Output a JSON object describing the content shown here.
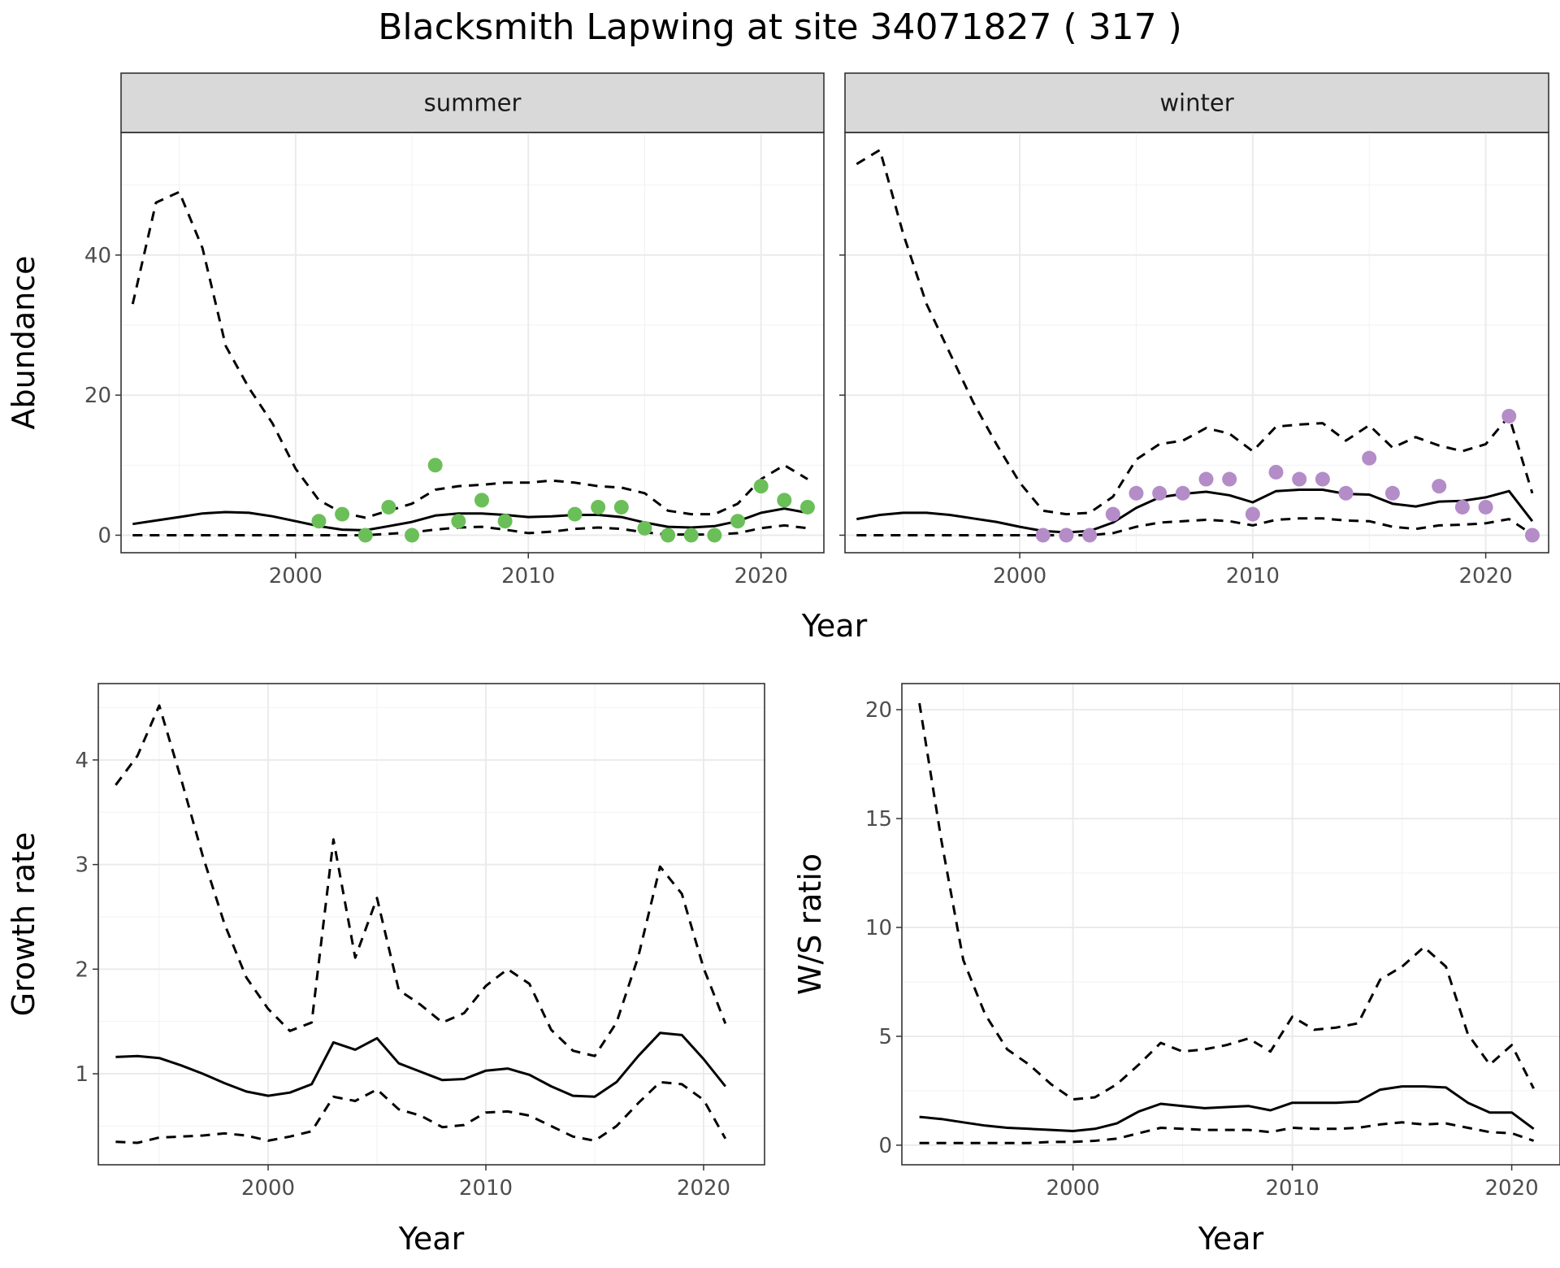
{
  "title": "Blacksmith Lapwing at site 34071827 ( 317 )",
  "chart_data": [
    {
      "panel": "summer",
      "type": "line",
      "strip_label": "summer",
      "xlabel": "",
      "ylabel": "Abundance",
      "xlim": [
        1992.5,
        2022.7
      ],
      "ylim": [
        -2.5,
        57.5
      ],
      "xticks": [
        2000,
        2010,
        2020
      ],
      "yticks": [
        0,
        20,
        40
      ],
      "point_color": "#6bbf59",
      "x": [
        1993,
        1994,
        1995,
        1996,
        1997,
        1998,
        1999,
        2000,
        2001,
        2002,
        2003,
        2004,
        2005,
        2006,
        2007,
        2008,
        2009,
        2010,
        2011,
        2012,
        2013,
        2014,
        2015,
        2016,
        2017,
        2018,
        2019,
        2020,
        2021,
        2022
      ],
      "series": [
        {
          "role": "estimate",
          "style": "solid",
          "values": [
            1.6,
            2.1,
            2.6,
            3.1,
            3.3,
            3.2,
            2.7,
            2.0,
            1.3,
            0.8,
            0.7,
            1.3,
            1.9,
            2.8,
            3.1,
            3.1,
            2.9,
            2.6,
            2.7,
            2.9,
            2.9,
            2.6,
            1.8,
            1.2,
            1.1,
            1.3,
            2.0,
            3.2,
            3.8,
            3.2
          ]
        },
        {
          "role": "upper",
          "style": "dashed",
          "values": [
            33,
            47.5,
            49,
            41,
            27,
            21,
            16,
            9.5,
            5,
            3.2,
            2.5,
            3.5,
            4.5,
            6.5,
            7,
            7.2,
            7.5,
            7.5,
            7.8,
            7.5,
            7,
            6.8,
            6,
            3.5,
            3,
            3,
            4.5,
            8,
            10,
            8
          ]
        },
        {
          "role": "lower",
          "style": "dashed",
          "values": [
            0,
            0,
            0,
            0,
            0,
            0,
            0,
            0,
            0,
            0,
            0,
            0.2,
            0.4,
            0.8,
            1.1,
            1.2,
            0.8,
            0.3,
            0.5,
            0.9,
            1.1,
            0.9,
            0.4,
            0.1,
            0.1,
            0.1,
            0.3,
            1.0,
            1.4,
            1.0
          ]
        }
      ],
      "points": [
        {
          "x": 2001,
          "y": 2
        },
        {
          "x": 2002,
          "y": 3
        },
        {
          "x": 2003,
          "y": 0
        },
        {
          "x": 2004,
          "y": 4
        },
        {
          "x": 2005,
          "y": 0
        },
        {
          "x": 2006,
          "y": 10
        },
        {
          "x": 2007,
          "y": 2
        },
        {
          "x": 2008,
          "y": 5
        },
        {
          "x": 2009,
          "y": 2
        },
        {
          "x": 2012,
          "y": 3
        },
        {
          "x": 2013,
          "y": 4
        },
        {
          "x": 2014,
          "y": 4
        },
        {
          "x": 2015,
          "y": 1
        },
        {
          "x": 2016,
          "y": 0
        },
        {
          "x": 2017,
          "y": 0
        },
        {
          "x": 2018,
          "y": 0
        },
        {
          "x": 2019,
          "y": 2
        },
        {
          "x": 2020,
          "y": 7
        },
        {
          "x": 2021,
          "y": 5
        },
        {
          "x": 2022,
          "y": 4
        }
      ]
    },
    {
      "panel": "winter",
      "type": "line",
      "strip_label": "winter",
      "xlabel": "",
      "ylabel": "",
      "xlim": [
        1992.5,
        2022.7
      ],
      "ylim": [
        -2.5,
        57.5
      ],
      "xticks": [
        2000,
        2010,
        2020
      ],
      "yticks": [
        0,
        20,
        40
      ],
      "point_color": "#b48cc8",
      "x": [
        1993,
        1994,
        1995,
        1996,
        1997,
        1998,
        1999,
        2000,
        2001,
        2002,
        2003,
        2004,
        2005,
        2006,
        2007,
        2008,
        2009,
        2010,
        2011,
        2012,
        2013,
        2014,
        2015,
        2016,
        2017,
        2018,
        2019,
        2020,
        2021,
        2022
      ],
      "series": [
        {
          "role": "estimate",
          "style": "solid",
          "values": [
            2.3,
            2.9,
            3.2,
            3.2,
            2.9,
            2.4,
            1.9,
            1.2,
            0.6,
            0.4,
            0.6,
            1.8,
            3.9,
            5.4,
            5.9,
            6.2,
            5.7,
            4.7,
            6.3,
            6.5,
            6.5,
            5.9,
            5.8,
            4.5,
            4.1,
            4.8,
            4.9,
            5.4,
            6.3,
            2.0
          ]
        },
        {
          "role": "upper",
          "style": "dashed",
          "values": [
            53,
            55,
            43,
            33,
            26,
            19,
            13,
            7.5,
            3.5,
            3,
            3.2,
            5.5,
            10.8,
            13,
            13.5,
            15.3,
            14.5,
            12,
            15.5,
            15.8,
            16,
            13.5,
            15.7,
            12.5,
            14,
            12.8,
            12,
            13,
            17,
            6
          ]
        },
        {
          "role": "lower",
          "style": "dashed",
          "values": [
            0,
            0,
            0,
            0,
            0,
            0,
            0,
            0,
            0,
            0,
            0,
            0.3,
            1.2,
            1.8,
            2.0,
            2.2,
            2.0,
            1.4,
            2.2,
            2.4,
            2.4,
            2.1,
            2.0,
            1.2,
            0.9,
            1.4,
            1.5,
            1.7,
            2.3,
            0.1
          ]
        }
      ],
      "points": [
        {
          "x": 2001,
          "y": 0
        },
        {
          "x": 2002,
          "y": 0
        },
        {
          "x": 2003,
          "y": 0
        },
        {
          "x": 2004,
          "y": 3
        },
        {
          "x": 2005,
          "y": 6
        },
        {
          "x": 2006,
          "y": 6
        },
        {
          "x": 2007,
          "y": 6
        },
        {
          "x": 2008,
          "y": 8
        },
        {
          "x": 2009,
          "y": 8
        },
        {
          "x": 2010,
          "y": 3
        },
        {
          "x": 2011,
          "y": 9
        },
        {
          "x": 2012,
          "y": 8
        },
        {
          "x": 2013,
          "y": 8
        },
        {
          "x": 2014,
          "y": 6
        },
        {
          "x": 2015,
          "y": 11
        },
        {
          "x": 2016,
          "y": 6
        },
        {
          "x": 2018,
          "y": 7
        },
        {
          "x": 2019,
          "y": 4
        },
        {
          "x": 2020,
          "y": 4
        },
        {
          "x": 2021,
          "y": 17
        },
        {
          "x": 2022,
          "y": 0
        }
      ]
    },
    {
      "panel": "growth",
      "type": "line",
      "xlabel": "Year",
      "ylabel": "Growth rate",
      "xlim": [
        1992.2,
        2022.8
      ],
      "ylim": [
        0.13,
        4.73
      ],
      "xticks": [
        2000,
        2010,
        2020
      ],
      "yticks": [
        1,
        2,
        3,
        4
      ],
      "x": [
        1993,
        1994,
        1995,
        1996,
        1997,
        1998,
        1999,
        2000,
        2001,
        2002,
        2003,
        2004,
        2005,
        2006,
        2007,
        2008,
        2009,
        2010,
        2011,
        2012,
        2013,
        2014,
        2015,
        2016,
        2017,
        2018,
        2019,
        2020,
        2021
      ],
      "series": [
        {
          "role": "estimate",
          "style": "solid",
          "values": [
            1.16,
            1.17,
            1.15,
            1.08,
            1.0,
            0.91,
            0.83,
            0.79,
            0.82,
            0.9,
            1.3,
            1.23,
            1.34,
            1.1,
            1.02,
            0.94,
            0.95,
            1.03,
            1.05,
            0.99,
            0.88,
            0.79,
            0.78,
            0.92,
            1.17,
            1.39,
            1.37,
            1.14,
            0.88
          ]
        },
        {
          "role": "upper",
          "style": "dashed",
          "values": [
            3.76,
            4.04,
            4.52,
            3.82,
            3.08,
            2.43,
            1.92,
            1.62,
            1.41,
            1.49,
            3.24,
            2.11,
            2.68,
            1.8,
            1.66,
            1.49,
            1.58,
            1.84,
            2.0,
            1.86,
            1.42,
            1.22,
            1.17,
            1.49,
            2.12,
            2.98,
            2.72,
            2.01,
            1.48
          ]
        },
        {
          "role": "lower",
          "style": "dashed",
          "values": [
            0.35,
            0.34,
            0.39,
            0.4,
            0.41,
            0.43,
            0.41,
            0.36,
            0.4,
            0.45,
            0.78,
            0.74,
            0.85,
            0.66,
            0.6,
            0.49,
            0.51,
            0.63,
            0.64,
            0.6,
            0.5,
            0.4,
            0.36,
            0.5,
            0.72,
            0.92,
            0.9,
            0.75,
            0.38
          ]
        }
      ]
    },
    {
      "panel": "ratio",
      "type": "line",
      "xlabel": "Year",
      "ylabel": "W/S ratio",
      "xlim": [
        1992.2,
        2022.2
      ],
      "ylim": [
        -0.9,
        21.2
      ],
      "xticks": [
        2000,
        2010,
        2020
      ],
      "yticks": [
        0,
        5,
        10,
        15,
        20
      ],
      "x": [
        1993,
        1994,
        1995,
        1996,
        1997,
        1998,
        1999,
        2000,
        2001,
        2002,
        2003,
        2004,
        2005,
        2006,
        2007,
        2008,
        2009,
        2010,
        2011,
        2012,
        2013,
        2014,
        2015,
        2016,
        2017,
        2018,
        2019,
        2020,
        2021
      ],
      "series": [
        {
          "role": "estimate",
          "style": "solid",
          "values": [
            1.3,
            1.2,
            1.05,
            0.9,
            0.8,
            0.75,
            0.7,
            0.65,
            0.75,
            1.0,
            1.55,
            1.9,
            1.8,
            1.7,
            1.75,
            1.8,
            1.6,
            1.95,
            1.95,
            1.95,
            2.0,
            2.55,
            2.7,
            2.7,
            2.65,
            1.95,
            1.5,
            1.5,
            0.75
          ]
        },
        {
          "role": "upper",
          "style": "dashed",
          "values": [
            20.3,
            14,
            8.5,
            6,
            4.4,
            3.7,
            2.8,
            2.1,
            2.2,
            2.8,
            3.7,
            4.7,
            4.3,
            4.4,
            4.6,
            4.9,
            4.3,
            5.9,
            5.3,
            5.4,
            5.6,
            7.6,
            8.2,
            9.1,
            8.2,
            5.1,
            3.7,
            4.6,
            2.6
          ]
        },
        {
          "role": "lower",
          "style": "dashed",
          "values": [
            0.1,
            0.1,
            0.1,
            0.1,
            0.1,
            0.1,
            0.15,
            0.15,
            0.2,
            0.3,
            0.55,
            0.8,
            0.75,
            0.7,
            0.7,
            0.7,
            0.6,
            0.8,
            0.75,
            0.75,
            0.8,
            0.95,
            1.05,
            0.95,
            1.0,
            0.8,
            0.6,
            0.55,
            0.2
          ]
        }
      ]
    }
  ]
}
